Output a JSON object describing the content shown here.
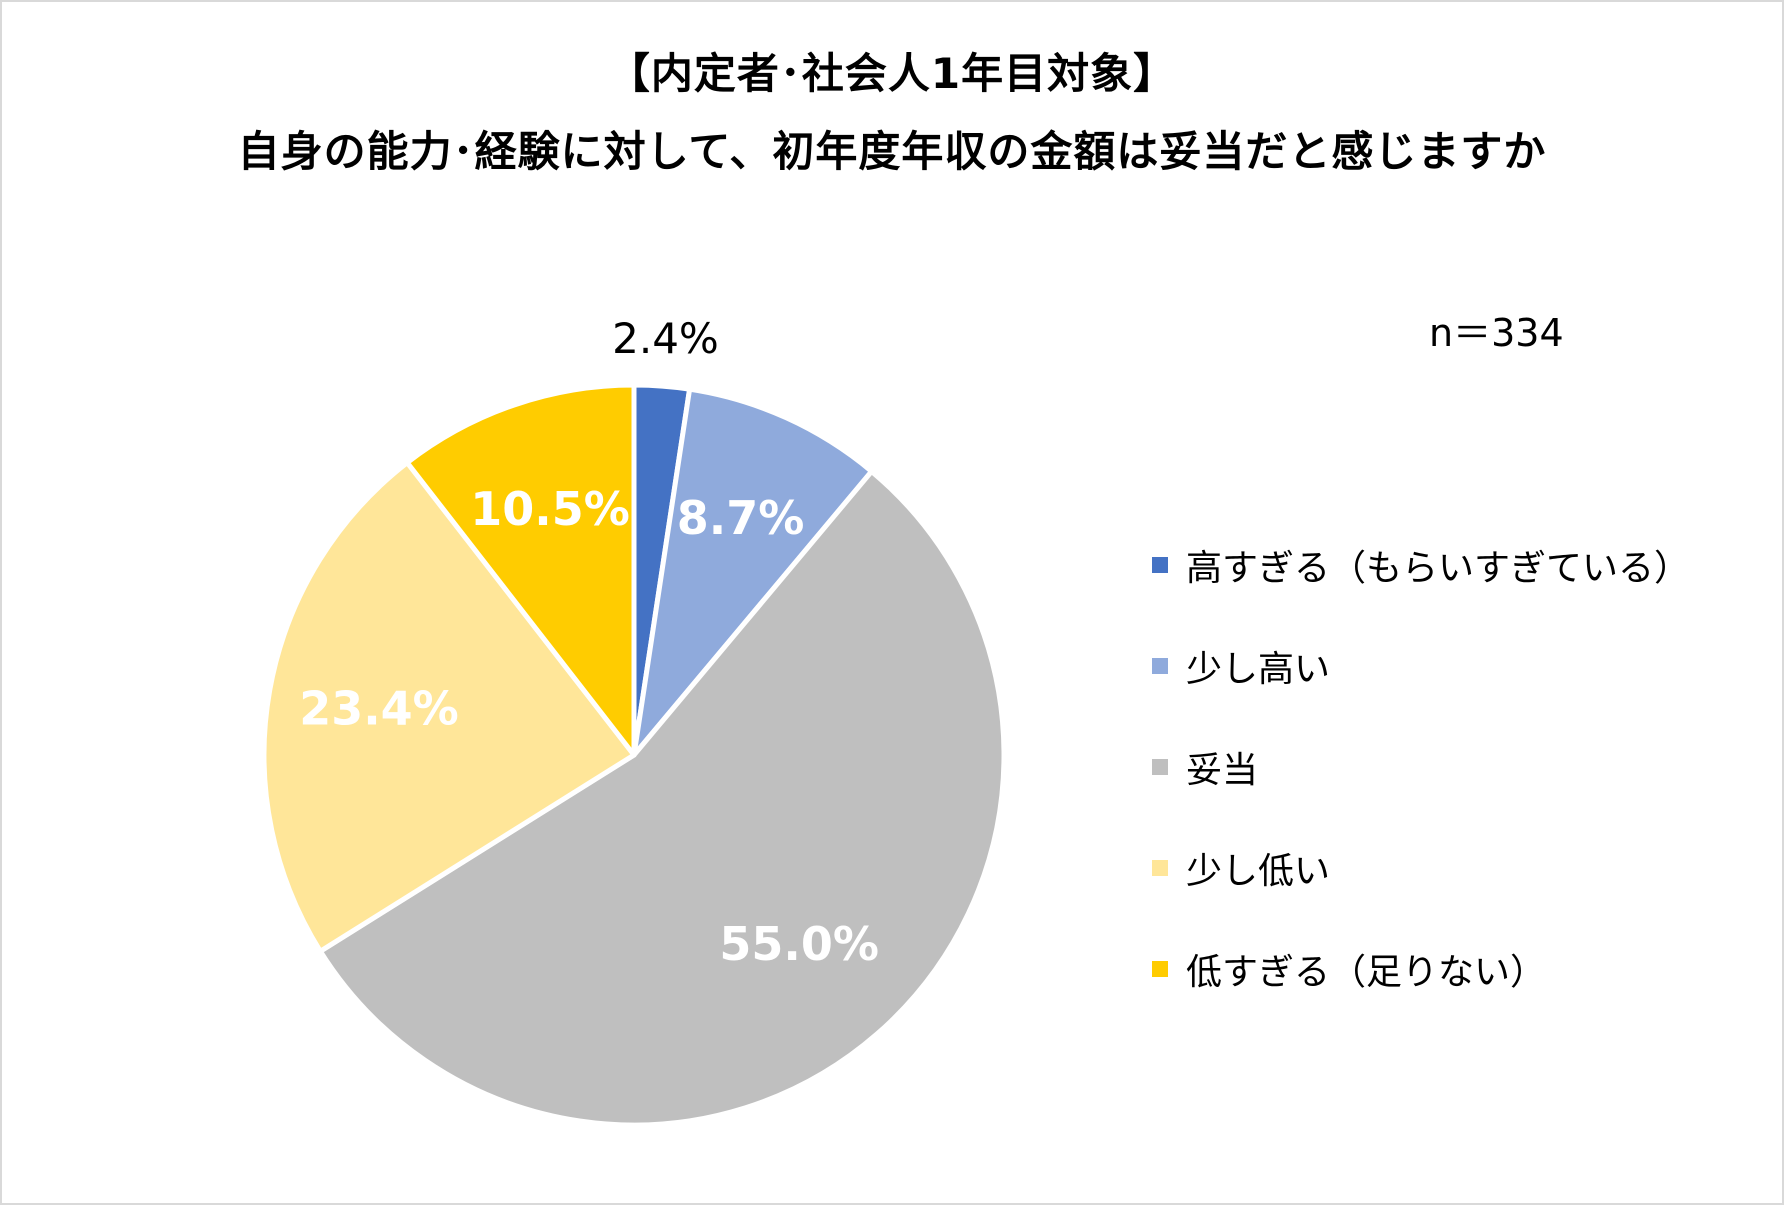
{
  "chart_data": {
    "type": "pie",
    "title": "【内定者･社会人1年目対象】",
    "subtitle": "自身の能力･経験に対して、初年度年収の金額は妥当だと感じますか",
    "sample_size": "n＝334",
    "legend_placement": "right",
    "slices": [
      {
        "label": "高すぎる（もらいすぎている）",
        "value": 2.4,
        "value_label": "2.4%",
        "color": "#4472C4",
        "label_color": "#000000"
      },
      {
        "label": "少し高い",
        "value": 8.7,
        "value_label": "8.7%",
        "color": "#8FAADC",
        "label_color": "#ffffff"
      },
      {
        "label": "妥当",
        "value": 55.0,
        "value_label": "55.0%",
        "color": "#BFBFBF",
        "label_color": "#ffffff"
      },
      {
        "label": "少し低い",
        "value": 23.4,
        "value_label": "23.4%",
        "color": "#FFE699",
        "label_color": "#ffffff"
      },
      {
        "label": "低すぎる（足りない）",
        "value": 10.5,
        "value_label": "10.5%",
        "color": "#FFCC00",
        "label_color": "#ffffff"
      }
    ]
  }
}
